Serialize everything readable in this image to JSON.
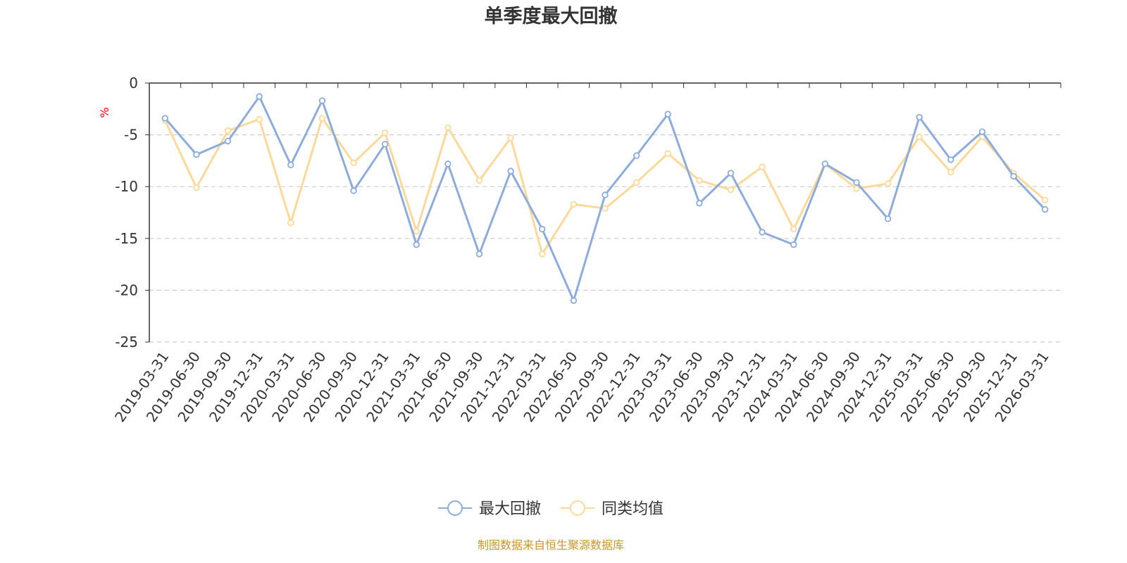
{
  "chart_data": {
    "type": "line",
    "title": "单季度最大回撤",
    "ylabel": "%",
    "ylim": [
      -25,
      0
    ],
    "yticks": [
      0,
      -5,
      -10,
      -15,
      -20,
      -25
    ],
    "grid": true,
    "legend_position": "bottom-center",
    "categories": [
      "2019-03-31",
      "2019-06-30",
      "2019-09-30",
      "2019-12-31",
      "2020-03-31",
      "2020-06-30",
      "2020-09-30",
      "2020-12-31",
      "2021-03-31",
      "2021-06-30",
      "2021-09-30",
      "2021-12-31",
      "2022-03-31",
      "2022-06-30",
      "2022-09-30",
      "2022-12-31",
      "2023-03-31",
      "2023-06-30",
      "2023-09-30",
      "2023-12-31",
      "2024-03-31",
      "2024-06-30",
      "2024-09-30",
      "2024-12-31",
      "2025-03-31",
      "2025-06-30",
      "2025-09-30",
      "2025-12-31",
      "2026-03-31"
    ],
    "series": [
      {
        "name": "最大回撤",
        "color": "#8eacdb",
        "values": [
          -3.4,
          -6.9,
          -5.6,
          -1.3,
          -7.9,
          -1.7,
          -10.4,
          -5.9,
          -15.6,
          -7.8,
          -16.5,
          -8.5,
          -14.1,
          -21.0,
          -10.8,
          -7.0,
          -3.0,
          -11.6,
          -8.7,
          -14.4,
          -15.6,
          -7.8,
          -9.6,
          -13.1,
          -3.3,
          -7.4,
          -4.7,
          -9.0,
          -12.2
        ]
      },
      {
        "name": "同类均值",
        "color": "#fcd99a",
        "values": [
          -3.6,
          -10.1,
          -4.6,
          -3.5,
          -13.5,
          -3.4,
          -7.7,
          -4.8,
          -14.3,
          -4.3,
          -9.4,
          -5.3,
          -16.5,
          -11.7,
          -12.1,
          -9.6,
          -6.8,
          -9.4,
          -10.3,
          -8.1,
          -14.1,
          -7.8,
          -10.2,
          -9.7,
          -5.2,
          -8.6,
          -5.2,
          -8.7,
          -11.3
        ]
      }
    ]
  },
  "footer": {
    "source": "制图数据来自恒生聚源数据库"
  }
}
